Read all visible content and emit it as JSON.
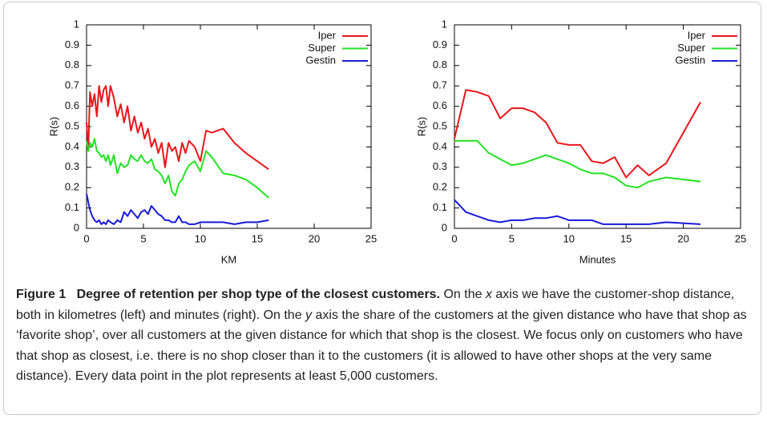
{
  "chart_data": [
    {
      "type": "line",
      "xlabel": "KM",
      "ylabel": "R(s)",
      "x": [
        0,
        0.15,
        0.3,
        0.5,
        0.7,
        0.9,
        1.1,
        1.3,
        1.5,
        1.7,
        1.9,
        2.1,
        2.4,
        2.7,
        3,
        3.3,
        3.6,
        3.9,
        4.2,
        4.5,
        4.8,
        5.1,
        5.4,
        5.7,
        6,
        6.3,
        6.6,
        6.9,
        7.2,
        7.5,
        7.8,
        8.1,
        8.4,
        8.7,
        9,
        9.5,
        10,
        10.5,
        11,
        12,
        13,
        14,
        15,
        16
      ],
      "series": [
        {
          "name": "Iper",
          "color": "#e8161b",
          "values": [
            0.52,
            0.38,
            0.67,
            0.6,
            0.66,
            0.55,
            0.7,
            0.62,
            0.68,
            0.7,
            0.6,
            0.7,
            0.64,
            0.55,
            0.61,
            0.52,
            0.6,
            0.48,
            0.55,
            0.47,
            0.52,
            0.44,
            0.49,
            0.4,
            0.44,
            0.37,
            0.42,
            0.3,
            0.42,
            0.38,
            0.4,
            0.33,
            0.42,
            0.37,
            0.43,
            0.4,
            0.33,
            0.48,
            0.47,
            0.49,
            0.42,
            0.37,
            0.33,
            0.29
          ]
        },
        {
          "name": "Super",
          "color": "#24e124",
          "values": [
            0.43,
            0.38,
            0.42,
            0.4,
            0.44,
            0.38,
            0.37,
            0.35,
            0.36,
            0.33,
            0.36,
            0.31,
            0.36,
            0.27,
            0.32,
            0.3,
            0.31,
            0.36,
            0.34,
            0.33,
            0.36,
            0.33,
            0.32,
            0.34,
            0.29,
            0.28,
            0.26,
            0.22,
            0.26,
            0.18,
            0.16,
            0.22,
            0.24,
            0.28,
            0.31,
            0.33,
            0.28,
            0.38,
            0.35,
            0.27,
            0.26,
            0.24,
            0.2,
            0.15
          ]
        },
        {
          "name": "Gestin",
          "color": "#1a1ad8",
          "values": [
            0.17,
            0.13,
            0.09,
            0.06,
            0.04,
            0.03,
            0.04,
            0.02,
            0.03,
            0.02,
            0.04,
            0.03,
            0.02,
            0.04,
            0.03,
            0.08,
            0.06,
            0.09,
            0.07,
            0.05,
            0.08,
            0.09,
            0.07,
            0.11,
            0.09,
            0.07,
            0.06,
            0.04,
            0.04,
            0.03,
            0.03,
            0.06,
            0.03,
            0.03,
            0.02,
            0.02,
            0.03,
            0.03,
            0.03,
            0.03,
            0.02,
            0.03,
            0.03,
            0.04
          ]
        }
      ],
      "xlim": [
        0,
        25
      ],
      "ylim": [
        0,
        1
      ],
      "xticks": [
        0,
        5,
        10,
        15,
        20,
        25
      ],
      "yticks": [
        0,
        0.1,
        0.2,
        0.3,
        0.4,
        0.5,
        0.6,
        0.7,
        0.8,
        0.9,
        1
      ],
      "legend": "upper right"
    },
    {
      "type": "line",
      "xlabel": "Minutes",
      "ylabel": "R(s)",
      "x": [
        0,
        1,
        2,
        3,
        4,
        5,
        6,
        7,
        8,
        9,
        10,
        11,
        12,
        13,
        14,
        15,
        16,
        17,
        18.5,
        21.5
      ],
      "series": [
        {
          "name": "Iper",
          "color": "#e8161b",
          "values": [
            0.44,
            0.68,
            0.67,
            0.65,
            0.54,
            0.59,
            0.59,
            0.57,
            0.52,
            0.42,
            0.41,
            0.41,
            0.33,
            0.32,
            0.35,
            0.25,
            0.31,
            0.26,
            0.32,
            0.62
          ]
        },
        {
          "name": "Super",
          "color": "#24e124",
          "values": [
            0.43,
            0.43,
            0.43,
            0.37,
            0.34,
            0.31,
            0.32,
            0.34,
            0.36,
            0.34,
            0.32,
            0.29,
            0.27,
            0.27,
            0.25,
            0.21,
            0.2,
            0.23,
            0.25,
            0.23
          ]
        },
        {
          "name": "Gestin",
          "color": "#1a1ad8",
          "values": [
            0.14,
            0.08,
            0.06,
            0.04,
            0.03,
            0.04,
            0.04,
            0.05,
            0.05,
            0.06,
            0.04,
            0.04,
            0.04,
            0.02,
            0.02,
            0.02,
            0.02,
            0.02,
            0.03,
            0.02
          ]
        }
      ],
      "xlim": [
        0,
        25
      ],
      "ylim": [
        0,
        1
      ],
      "xticks": [
        0,
        5,
        10,
        15,
        20,
        25
      ],
      "yticks": [
        0,
        0.1,
        0.2,
        0.3,
        0.4,
        0.5,
        0.6,
        0.7,
        0.8,
        0.9,
        1
      ],
      "legend": "upper right"
    }
  ],
  "caption": {
    "label": "Figure 1",
    "title": "Degree of retention per shop type of the closest customers.",
    "text": [
      "On the ",
      "x",
      " axis we have the customer-shop distance, both in kilometres (left) and minutes (right). On the ",
      "y",
      " axis the share of the customers at the given distance who have that shop as ‘favorite shop’, over all customers at the given distance for which that shop is the closest. We focus only on customers who have that shop as closest, i.e. there is no shop closer than it to the customers (it is allowed to have other shops at the very same distance). Every data point in the plot represents at least 5,000 customers."
    ]
  }
}
